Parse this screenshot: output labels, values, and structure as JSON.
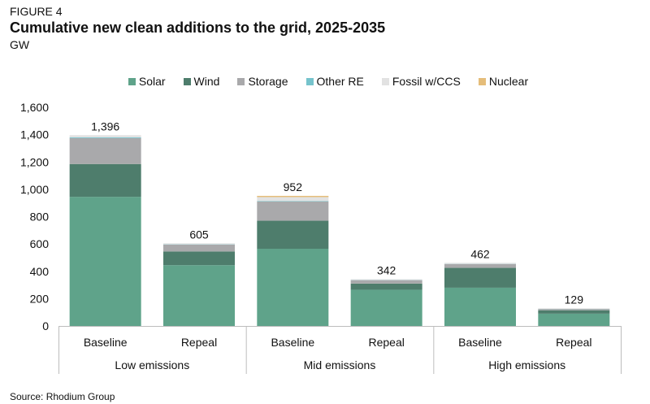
{
  "header": {
    "figure_label": "FIGURE 4",
    "title": "Cumulative new clean additions to the grid, 2025-2035",
    "unit": "GW"
  },
  "source": "Source: Rhodium Group",
  "chart_data": {
    "type": "bar",
    "stacked": true,
    "title": "Cumulative new clean additions to the grid, 2025-2035",
    "ylabel": "GW",
    "ylim": [
      0,
      1600
    ],
    "yticks": [
      0,
      200,
      400,
      600,
      800,
      1000,
      1200,
      1400,
      1600
    ],
    "ytick_labels": [
      "0",
      "200",
      "400",
      "600",
      "800",
      "1,000",
      "1,200",
      "1,400",
      "1,600"
    ],
    "grid": false,
    "legend_position": "top-center",
    "categories": [
      "Baseline",
      "Repeal",
      "Baseline",
      "Repeal",
      "Baseline",
      "Repeal"
    ],
    "groups": [
      {
        "label": "Low emissions",
        "span": [
          0,
          1
        ]
      },
      {
        "label": "Mid emissions",
        "span": [
          2,
          3
        ]
      },
      {
        "label": "High emissions",
        "span": [
          4,
          5
        ]
      }
    ],
    "series": [
      {
        "name": "Solar",
        "color": "#5fa38a",
        "values": [
          945,
          445,
          565,
          265,
          280,
          90
        ]
      },
      {
        "name": "Wind",
        "color": "#4e7d6c",
        "values": [
          240,
          100,
          205,
          45,
          145,
          25
        ]
      },
      {
        "name": "Storage",
        "color": "#a9a9ab",
        "values": [
          190,
          50,
          140,
          25,
          28,
          9
        ]
      },
      {
        "name": "Other RE",
        "color": "#76c3cc",
        "values": [
          5,
          2,
          3,
          1,
          1,
          1
        ]
      },
      {
        "name": "Fossil w/CCS",
        "color": "#e2e2e2",
        "values": [
          16,
          8,
          30,
          6,
          8,
          4
        ]
      },
      {
        "name": "Nuclear",
        "color": "#e5bd7a",
        "values": [
          0,
          0,
          9,
          0,
          0,
          0
        ]
      }
    ],
    "totals": [
      1396,
      605,
      952,
      342,
      462,
      129
    ],
    "total_labels": [
      "1,396",
      "605",
      "952",
      "342",
      "462",
      "129"
    ]
  }
}
